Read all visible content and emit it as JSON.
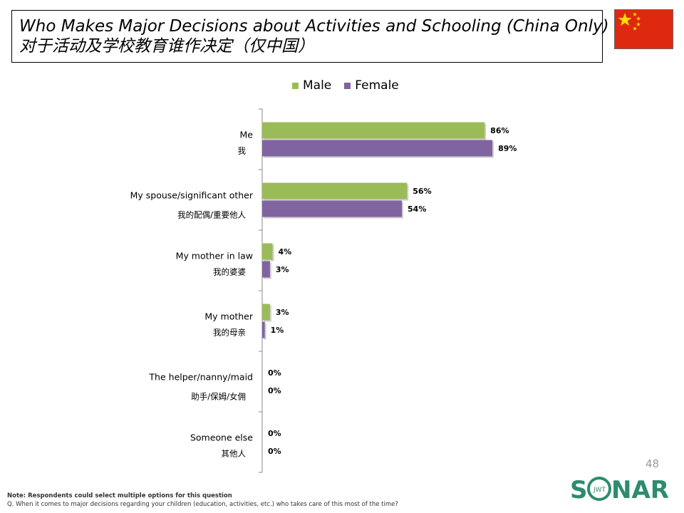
{
  "title": {
    "english": "Who Makes Major Decisions about Activities and Schooling (China Only)",
    "chinese": "对于活动及学校教育谁作决定（仅中国）"
  },
  "flag": {
    "icon": "china-flag-icon",
    "red": "#de2910",
    "yellow": "#ffde00"
  },
  "colors": {
    "male": "#9bbb59",
    "female": "#8064a2",
    "axis": "#888888"
  },
  "chart_data": {
    "type": "bar",
    "orientation": "horizontal",
    "title": "Who Makes Major Decisions about Activities and Schooling (China Only)",
    "legend_position": "top",
    "xlim": [
      0,
      100
    ],
    "categories": [
      {
        "en": "Me",
        "cn": "我"
      },
      {
        "en": "My spouse/significant other",
        "cn": "我的配偶/重要他人"
      },
      {
        "en": "My mother in law",
        "cn": "我的婆婆"
      },
      {
        "en": "My mother",
        "cn": "我的母亲"
      },
      {
        "en": "The helper/nanny/maid",
        "cn": "助手/保姆/女佣"
      },
      {
        "en": "Someone else",
        "cn": "其他人"
      }
    ],
    "series": [
      {
        "name": "Male",
        "values": [
          86,
          56,
          4,
          3,
          0,
          0
        ],
        "labels": [
          "86%",
          "56%",
          "4%",
          "3%",
          "0%",
          "0%"
        ]
      },
      {
        "name": "Female",
        "values": [
          89,
          54,
          3,
          1,
          0,
          0
        ],
        "labels": [
          "89%",
          "54%",
          "3%",
          "1%",
          "0%",
          "0%"
        ]
      }
    ]
  },
  "footnote": {
    "note": "Note: Respondents could select multiple options for this question",
    "question": "Q. When it comes to major decisions regarding your children (education, activities, etc.) who takes care of this most of the time?"
  },
  "page_number": "48",
  "logo": {
    "text": "SONAR",
    "sub": "JWT"
  }
}
